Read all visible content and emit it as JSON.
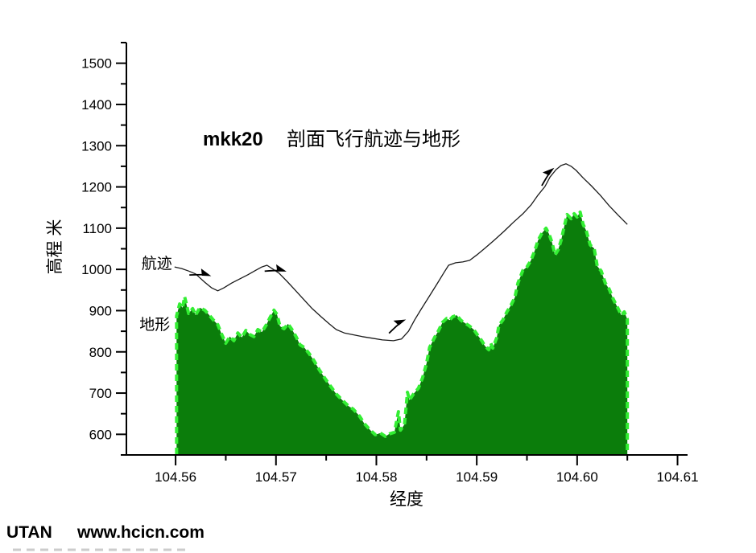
{
  "page": {
    "background": "#ffffff"
  },
  "watermark": {
    "brand": "UTAN",
    "url": "www.hcicn.com",
    "color": "#1c3a6c"
  },
  "chart_data": {
    "type": "area",
    "title": {
      "prefix": "mkk20",
      "text": "剖面飞行航迹与地形"
    },
    "xlabel": "经度",
    "ylabel": "高程 米",
    "grid": false,
    "legend": "inline-annotations",
    "x_axis": {
      "min": 104.5551,
      "max": 104.611,
      "major_ticks": [
        104.56,
        104.57,
        104.58,
        104.59,
        104.6,
        104.61
      ],
      "major_tick_labels": [
        "104.56",
        "104.57",
        "104.58",
        "104.59",
        "104.60",
        "104.61"
      ],
      "minor_ticks": [
        104.565,
        104.575,
        104.585,
        104.595,
        104.605
      ]
    },
    "y_axis": {
      "min": 550,
      "max": 1550,
      "major_ticks": [
        600,
        700,
        800,
        900,
        1000,
        1100,
        1200,
        1300,
        1400,
        1500
      ],
      "major_tick_labels": [
        "600",
        "700",
        "800",
        "900",
        "1000",
        "1100",
        "1200",
        "1300",
        "1400",
        "1500"
      ],
      "minor_ticks": [
        550,
        650,
        750,
        850,
        950,
        1050,
        1150,
        1250,
        1350,
        1450,
        1550
      ]
    },
    "series": [
      {
        "name": "地形",
        "type": "area",
        "fill": "#0b7d0b",
        "outline": "#33ee33",
        "outline_style": "dashed",
        "points": [
          [
            104.5601,
            887
          ],
          [
            104.5604,
            916
          ],
          [
            104.5607,
            907
          ],
          [
            104.5609,
            934
          ],
          [
            104.5613,
            893
          ],
          [
            104.5617,
            905
          ],
          [
            104.562,
            889
          ],
          [
            104.5624,
            907
          ],
          [
            104.5629,
            901
          ],
          [
            104.5633,
            891
          ],
          [
            104.5637,
            879
          ],
          [
            104.5642,
            866
          ],
          [
            104.5646,
            842
          ],
          [
            104.565,
            821
          ],
          [
            104.5654,
            837
          ],
          [
            104.5658,
            827
          ],
          [
            104.5662,
            846
          ],
          [
            104.5666,
            835
          ],
          [
            104.567,
            852
          ],
          [
            104.5674,
            842
          ],
          [
            104.5678,
            837
          ],
          [
            104.5682,
            854
          ],
          [
            104.5686,
            848
          ],
          [
            104.569,
            864
          ],
          [
            104.5694,
            883
          ],
          [
            104.5698,
            901
          ],
          [
            104.5701,
            891
          ],
          [
            104.5704,
            862
          ],
          [
            104.5708,
            856
          ],
          [
            104.5712,
            868
          ],
          [
            104.5716,
            854
          ],
          [
            104.572,
            837
          ],
          [
            104.5724,
            817
          ],
          [
            104.5728,
            811
          ],
          [
            104.5733,
            796
          ],
          [
            104.5738,
            778
          ],
          [
            104.5743,
            757
          ],
          [
            104.5749,
            735
          ],
          [
            104.5754,
            718
          ],
          [
            104.576,
            698
          ],
          [
            104.5766,
            683
          ],
          [
            104.5772,
            669
          ],
          [
            104.5777,
            661
          ],
          [
            104.5783,
            645
          ],
          [
            104.5788,
            626
          ],
          [
            104.5794,
            610
          ],
          [
            104.5799,
            599
          ],
          [
            104.5804,
            603
          ],
          [
            104.5809,
            595
          ],
          [
            104.5813,
            601
          ],
          [
            104.5818,
            605
          ],
          [
            104.5822,
            655
          ],
          [
            104.5824,
            610
          ],
          [
            104.5828,
            624
          ],
          [
            104.5831,
            702
          ],
          [
            104.5833,
            683
          ],
          [
            104.5837,
            698
          ],
          [
            104.5842,
            712
          ],
          [
            104.5846,
            737
          ],
          [
            104.585,
            772
          ],
          [
            104.5853,
            811
          ],
          [
            104.5858,
            835
          ],
          [
            104.5862,
            852
          ],
          [
            104.5866,
            872
          ],
          [
            104.587,
            881
          ],
          [
            104.5873,
            877
          ],
          [
            104.5876,
            885
          ],
          [
            104.588,
            889
          ],
          [
            104.5884,
            877
          ],
          [
            104.5888,
            870
          ],
          [
            104.5892,
            864
          ],
          [
            104.5897,
            854
          ],
          [
            104.5901,
            840
          ],
          [
            104.5905,
            827
          ],
          [
            104.5908,
            815
          ],
          [
            104.5912,
            805
          ],
          [
            104.5914,
            821
          ],
          [
            104.5916,
            809
          ],
          [
            104.592,
            835
          ],
          [
            104.5922,
            864
          ],
          [
            104.5926,
            877
          ],
          [
            104.593,
            897
          ],
          [
            104.5934,
            913
          ],
          [
            104.5938,
            932
          ],
          [
            104.5941,
            967
          ],
          [
            104.5946,
            998
          ],
          [
            104.595,
            1006
          ],
          [
            104.5954,
            1022
          ],
          [
            104.5958,
            1047
          ],
          [
            104.5961,
            1070
          ],
          [
            104.5965,
            1088
          ],
          [
            104.5969,
            1100
          ],
          [
            104.5972,
            1086
          ],
          [
            104.5975,
            1065
          ],
          [
            104.5978,
            1035
          ],
          [
            104.5981,
            1047
          ],
          [
            104.5984,
            1070
          ],
          [
            104.5987,
            1102
          ],
          [
            104.599,
            1133
          ],
          [
            104.5994,
            1123
          ],
          [
            104.5997,
            1135
          ],
          [
            104.6,
            1127
          ],
          [
            104.6003,
            1139
          ],
          [
            104.6006,
            1109
          ],
          [
            104.6009,
            1094
          ],
          [
            104.6013,
            1059
          ],
          [
            104.6017,
            1051
          ],
          [
            104.602,
            1008
          ],
          [
            104.6024,
            996
          ],
          [
            104.6028,
            967
          ],
          [
            104.6032,
            952
          ],
          [
            104.6036,
            928
          ],
          [
            104.604,
            909
          ],
          [
            104.6044,
            889
          ],
          [
            104.6047,
            897
          ],
          [
            104.605,
            879
          ]
        ]
      },
      {
        "name": "航迹",
        "type": "line",
        "color": "#1a1a1a",
        "points": [
          [
            104.5599,
            1006
          ],
          [
            104.5606,
            1002
          ],
          [
            104.5613,
            996
          ],
          [
            104.562,
            989
          ],
          [
            104.5629,
            969
          ],
          [
            104.5636,
            955
          ],
          [
            104.5642,
            948
          ],
          [
            104.5648,
            955
          ],
          [
            104.5656,
            967
          ],
          [
            104.5664,
            977
          ],
          [
            104.5672,
            987
          ],
          [
            104.568,
            998
          ],
          [
            104.5686,
            1006
          ],
          [
            104.5691,
            1010
          ],
          [
            104.5696,
            1002
          ],
          [
            104.5703,
            991
          ],
          [
            104.5711,
            971
          ],
          [
            104.5719,
            950
          ],
          [
            104.5728,
            926
          ],
          [
            104.5736,
            905
          ],
          [
            104.5745,
            885
          ],
          [
            104.5753,
            868
          ],
          [
            104.576,
            854
          ],
          [
            104.5768,
            846
          ],
          [
            104.5776,
            842
          ],
          [
            104.5786,
            837
          ],
          [
            104.5796,
            833
          ],
          [
            104.5806,
            829
          ],
          [
            104.5817,
            827
          ],
          [
            104.5825,
            831
          ],
          [
            104.5832,
            850
          ],
          [
            104.5838,
            877
          ],
          [
            104.5845,
            905
          ],
          [
            104.5853,
            936
          ],
          [
            104.5861,
            967
          ],
          [
            104.5867,
            991
          ],
          [
            104.5872,
            1010
          ],
          [
            104.5879,
            1016
          ],
          [
            104.5886,
            1018
          ],
          [
            104.5893,
            1022
          ],
          [
            104.59,
            1035
          ],
          [
            104.5908,
            1051
          ],
          [
            104.5917,
            1070
          ],
          [
            104.5927,
            1092
          ],
          [
            104.5936,
            1113
          ],
          [
            104.5946,
            1135
          ],
          [
            104.5954,
            1156
          ],
          [
            104.5961,
            1180
          ],
          [
            104.5968,
            1201
          ],
          [
            104.5973,
            1224
          ],
          [
            104.5979,
            1242
          ],
          [
            104.5984,
            1252
          ],
          [
            104.5989,
            1256
          ],
          [
            104.5994,
            1250
          ],
          [
            104.5999,
            1240
          ],
          [
            104.6006,
            1222
          ],
          [
            104.6014,
            1203
          ],
          [
            104.6023,
            1180
          ],
          [
            104.6032,
            1154
          ],
          [
            104.6041,
            1131
          ],
          [
            104.605,
            1109
          ]
        ]
      }
    ],
    "annotations": [
      {
        "text": "航迹",
        "x": 104.5566,
        "y": 1016
      },
      {
        "text": "地形",
        "x": 104.5564,
        "y": 868
      }
    ],
    "arrows": [
      {
        "x": 104.5634,
        "y": 985,
        "angle": 20
      },
      {
        "x": 104.5709,
        "y": 996,
        "angle": 18
      },
      {
        "x": 104.5828,
        "y": 877,
        "angle": -22
      },
      {
        "x": 104.5976,
        "y": 1244,
        "angle": -38
      }
    ]
  }
}
